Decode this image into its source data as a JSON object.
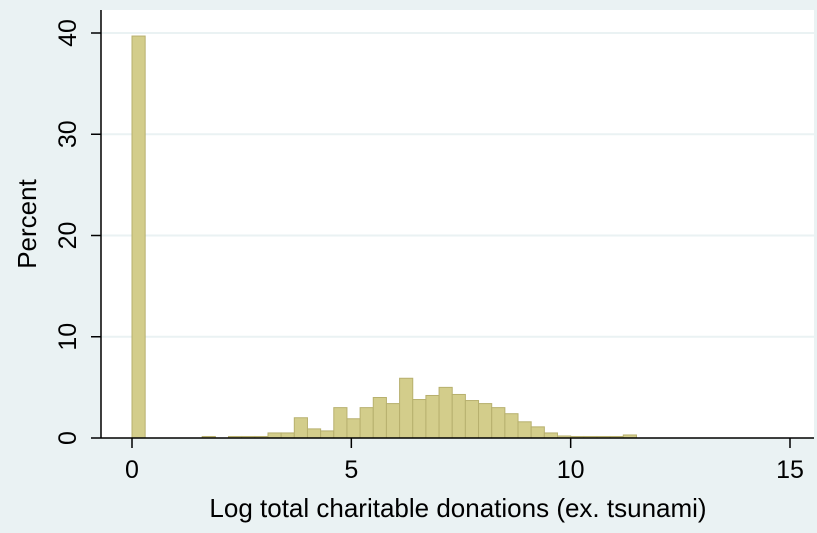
{
  "chart_data": {
    "type": "bar",
    "subtype": "histogram",
    "title": "",
    "xlabel": "Log total charitable donations (ex. tsunami)",
    "ylabel": "Percent",
    "xlim": [
      -0.5,
      15.5
    ],
    "ylim": [
      0,
      42
    ],
    "xticks": [
      0,
      5,
      10,
      15
    ],
    "yticks": [
      0,
      10,
      20,
      30,
      40
    ],
    "grid": "horizontal",
    "bin_width": 0.3,
    "colors": {
      "bar_fill": "#d3cd8b",
      "bar_edge": "#b7b06e",
      "background": "#eaf2f3",
      "plot_area": "#ffffff",
      "grid": "#eaf2f3"
    },
    "bins": [
      {
        "x": 0.0,
        "value": 39.7
      },
      {
        "x": 1.6,
        "value": 0.15
      },
      {
        "x": 2.2,
        "value": 0.15
      },
      {
        "x": 2.5,
        "value": 0.15
      },
      {
        "x": 2.8,
        "value": 0.15
      },
      {
        "x": 3.1,
        "value": 0.5
      },
      {
        "x": 3.4,
        "value": 0.5
      },
      {
        "x": 3.7,
        "value": 2.0
      },
      {
        "x": 4.0,
        "value": 0.9
      },
      {
        "x": 4.3,
        "value": 0.7
      },
      {
        "x": 4.6,
        "value": 3.0
      },
      {
        "x": 4.9,
        "value": 1.9
      },
      {
        "x": 5.2,
        "value": 3.0
      },
      {
        "x": 5.5,
        "value": 4.0
      },
      {
        "x": 5.8,
        "value": 3.4
      },
      {
        "x": 6.1,
        "value": 5.9
      },
      {
        "x": 6.4,
        "value": 3.8
      },
      {
        "x": 6.7,
        "value": 4.2
      },
      {
        "x": 7.0,
        "value": 5.0
      },
      {
        "x": 7.3,
        "value": 4.3
      },
      {
        "x": 7.6,
        "value": 3.7
      },
      {
        "x": 7.9,
        "value": 3.4
      },
      {
        "x": 8.2,
        "value": 3.0
      },
      {
        "x": 8.5,
        "value": 2.4
      },
      {
        "x": 8.8,
        "value": 1.6
      },
      {
        "x": 9.1,
        "value": 1.1
      },
      {
        "x": 9.4,
        "value": 0.5
      },
      {
        "x": 9.7,
        "value": 0.2
      },
      {
        "x": 10.0,
        "value": 0.15
      },
      {
        "x": 10.3,
        "value": 0.15
      },
      {
        "x": 10.6,
        "value": 0.15
      },
      {
        "x": 10.9,
        "value": 0.15
      },
      {
        "x": 11.2,
        "value": 0.3
      }
    ]
  }
}
